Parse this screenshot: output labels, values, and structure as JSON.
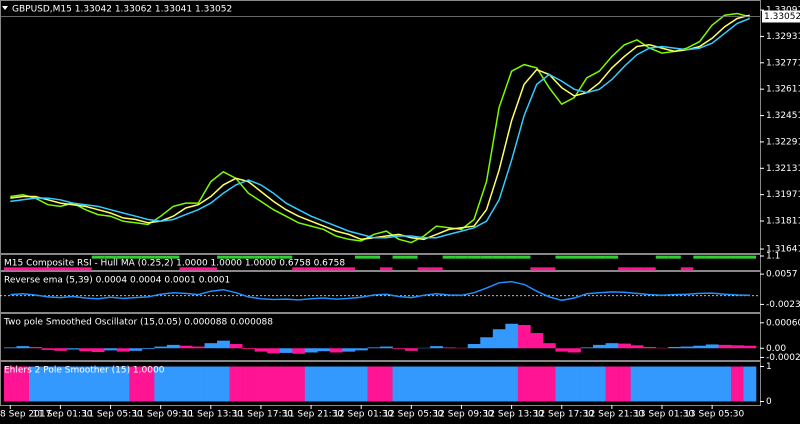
{
  "chart_data": [
    {
      "type": "line",
      "title": "GBPUSD,M15  1.33042 1.33062 1.33041 1.33052",
      "categories": [
        "8 Sep 2017",
        null,
        null,
        null,
        "11 Sep 01:30",
        null,
        null,
        null,
        "11 Sep 05:30",
        null,
        null,
        null,
        "11 Sep 09:30",
        null,
        null,
        null,
        "11 Sep 13:30",
        null,
        null,
        null,
        "11 Sep 17:30",
        null,
        null,
        null,
        "11 Sep 21:30",
        null,
        null,
        null,
        "12 Sep 01:30",
        null,
        null,
        null,
        "12 Sep 05:30",
        null,
        null,
        null,
        "12 Sep 09:30",
        null,
        null,
        null,
        "12 Sep 13:30",
        null,
        null,
        null,
        "12 Sep 17:30",
        null,
        null,
        null,
        "12 Sep 21:30",
        null,
        null,
        null,
        "13 Sep 01:30",
        null,
        null,
        null,
        "13 Sep 05:30",
        null,
        null,
        null
      ],
      "series": [
        {
          "color": "#7cfc00",
          "values": [
            1.3196,
            1.3197,
            1.3195,
            1.3191,
            1.319,
            1.3192,
            1.3188,
            1.3185,
            1.3184,
            1.3181,
            1.318,
            1.3179,
            1.3184,
            1.319,
            1.3192,
            1.3192,
            1.3205,
            1.3211,
            1.3207,
            1.3198,
            1.3193,
            1.3188,
            1.3184,
            1.318,
            1.3178,
            1.3176,
            1.3172,
            1.317,
            1.3169,
            1.3173,
            1.3175,
            1.317,
            1.3168,
            1.3172,
            1.3178,
            1.3177,
            1.3176,
            1.3182,
            1.3205,
            1.325,
            1.3272,
            1.3276,
            1.3274,
            1.3262,
            1.3252,
            1.3256,
            1.3268,
            1.3272,
            1.3281,
            1.3288,
            1.3291,
            1.3286,
            1.3283,
            1.3284,
            1.3286,
            1.329,
            1.33,
            1.3306,
            1.3307,
            1.3305
          ]
        },
        {
          "color": "#ffff66",
          "values": [
            1.3195,
            1.3196,
            1.3196,
            1.3194,
            1.3192,
            1.3191,
            1.319,
            1.3188,
            1.3186,
            1.3183,
            1.3182,
            1.318,
            1.3181,
            1.3184,
            1.3189,
            1.3191,
            1.3196,
            1.3203,
            1.3207,
            1.3205,
            1.3199,
            1.3193,
            1.3188,
            1.3184,
            1.3181,
            1.3178,
            1.3175,
            1.3173,
            1.317,
            1.3171,
            1.3172,
            1.3173,
            1.3171,
            1.317,
            1.3173,
            1.3176,
            1.3177,
            1.3178,
            1.3188,
            1.3212,
            1.3242,
            1.3264,
            1.3273,
            1.327,
            1.3262,
            1.3257,
            1.3259,
            1.3265,
            1.3274,
            1.3281,
            1.3287,
            1.3288,
            1.3286,
            1.3284,
            1.3285,
            1.3287,
            1.3292,
            1.3299,
            1.3304,
            1.3306
          ]
        },
        {
          "color": "#33ccff",
          "values": [
            1.3193,
            1.3194,
            1.3195,
            1.3195,
            1.3194,
            1.3192,
            1.3191,
            1.319,
            1.3188,
            1.3186,
            1.3184,
            1.3182,
            1.3181,
            1.3182,
            1.3185,
            1.3188,
            1.3192,
            1.3198,
            1.3203,
            1.3206,
            1.3203,
            1.3198,
            1.3192,
            1.3188,
            1.3184,
            1.3181,
            1.3178,
            1.3175,
            1.3173,
            1.3171,
            1.3171,
            1.3172,
            1.3172,
            1.3171,
            1.3171,
            1.3173,
            1.3175,
            1.3177,
            1.3181,
            1.3194,
            1.3218,
            1.3245,
            1.3264,
            1.327,
            1.3266,
            1.3261,
            1.3259,
            1.3261,
            1.3267,
            1.3275,
            1.3282,
            1.3286,
            1.3287,
            1.3286,
            1.3285,
            1.3286,
            1.3289,
            1.3295,
            1.3301,
            1.3304
          ]
        }
      ],
      "ylim": [
        1.31617,
        1.3314
      ],
      "yticks": [
        1.33091,
        1.32931,
        1.32771,
        1.32611,
        1.32451,
        1.32291,
        1.32131,
        1.31971,
        1.31811,
        1.31641
      ],
      "last_price": 1.33052
    },
    {
      "type": "step",
      "title": "M15 Composite RSI - Hull MA (0.25,2) 1.0000 1.0000 1.0000 0.6758 0.6758",
      "colors": [
        "#ff1493",
        "#32cd32"
      ],
      "values": [
        0,
        0,
        0,
        0,
        0,
        0,
        0,
        1,
        1,
        1,
        1,
        1,
        1,
        1,
        0,
        0,
        0,
        1,
        1,
        1,
        1,
        1,
        1,
        0,
        0,
        0,
        0,
        0,
        1,
        1,
        0,
        1,
        1,
        0,
        0,
        1,
        1,
        1,
        1,
        1,
        1,
        1,
        0,
        0,
        1,
        1,
        1,
        1,
        1,
        0,
        0,
        0,
        1,
        1,
        0,
        1,
        1,
        1,
        1,
        1
      ],
      "ylim": [
        -0.1,
        1.1
      ],
      "yticks": [
        1.1
      ]
    },
    {
      "type": "line",
      "title": "Reverse ema (5,39) 0.0004 0.0004 0.0001 0.0001",
      "color": "#1e90ff",
      "values": [
        0.0003,
        0.0005,
        0.0002,
        -0.0003,
        -0.0005,
        -0.0002,
        -0.0006,
        -0.0008,
        -0.0004,
        -0.0007,
        -0.0005,
        -0.0003,
        0.0004,
        0.0008,
        0.0006,
        0.0003,
        0.0012,
        0.0016,
        0.0008,
        -0.0003,
        -0.0008,
        -0.001,
        -0.0009,
        -0.0011,
        -0.0008,
        -0.0006,
        -0.0009,
        -0.0007,
        -0.0004,
        0.0002,
        0.0004,
        -0.0002,
        -0.0005,
        0.0001,
        0.0005,
        0.0002,
        0.0001,
        0.0008,
        0.002,
        0.0034,
        0.0037,
        0.003,
        0.0012,
        -0.0003,
        -0.0012,
        -0.0006,
        0.0005,
        0.0008,
        0.001,
        0.0009,
        0.0006,
        0.0003,
        0.0001,
        0.0003,
        0.0004,
        0.0006,
        0.0007,
        0.0004,
        0.0002,
        0.0001
      ],
      "ylim": [
        -0.0043,
        0.006
      ],
      "yticks": [
        0.0057,
        -0.0023
      ]
    },
    {
      "type": "histogram",
      "title": "Two pole Smoothed Oscillator (15,0.05) 0.000088 0.000088",
      "up_color": "#3399ff",
      "down_color": "#ff1493",
      "values": [
        2e-05,
        5e-05,
        3e-05,
        -4e-05,
        -6e-05,
        -3e-05,
        -7e-05,
        -9e-05,
        -5e-05,
        -8e-05,
        -6e-05,
        -2e-05,
        4e-05,
        8e-05,
        6e-05,
        4e-05,
        0.00012,
        0.00018,
        0.0001,
        -2e-05,
        -8e-05,
        -0.00012,
        -0.00011,
        -0.00013,
        -0.0001,
        -7e-05,
        -0.0001,
        -8e-05,
        -5e-05,
        2e-05,
        4e-05,
        -2e-05,
        -6e-05,
        1e-05,
        5e-05,
        2e-05,
        1e-05,
        0.0001,
        0.00026,
        0.00045,
        0.00058,
        0.00055,
        0.00036,
        0.00012,
        -8e-05,
        -0.0001,
        2e-05,
        8e-05,
        0.00012,
        0.00011,
        7e-05,
        3e-05,
        1e-05,
        3e-05,
        4e-05,
        6e-05,
        9e-05,
        8e-05,
        7e-05,
        6e-05
      ],
      "ylim": [
        -0.000278,
        0.000787
      ],
      "yticks": [
        0.000602,
        {
          "value": 0,
          "label": "0.00"
        },
        -0.000217
      ]
    },
    {
      "type": "state",
      "title": "Ehlers 2 Pole Smoother (15) 1.0000",
      "colors": [
        "#ff1493",
        "#3399ff"
      ],
      "values": [
        0,
        0,
        1,
        1,
        1,
        1,
        1,
        1,
        1,
        1,
        0,
        0,
        1,
        1,
        1,
        1,
        1,
        1,
        0,
        0,
        0,
        0,
        0,
        0,
        1,
        1,
        1,
        1,
        1,
        0,
        0,
        1,
        1,
        1,
        1,
        1,
        1,
        1,
        1,
        1,
        1,
        0,
        0,
        0,
        1,
        1,
        1,
        1,
        0,
        0,
        1,
        1,
        1,
        1,
        1,
        1,
        1,
        1,
        0,
        1
      ],
      "ylim": [
        -0.1,
        1.1
      ],
      "yticks": [
        1,
        0
      ]
    }
  ]
}
